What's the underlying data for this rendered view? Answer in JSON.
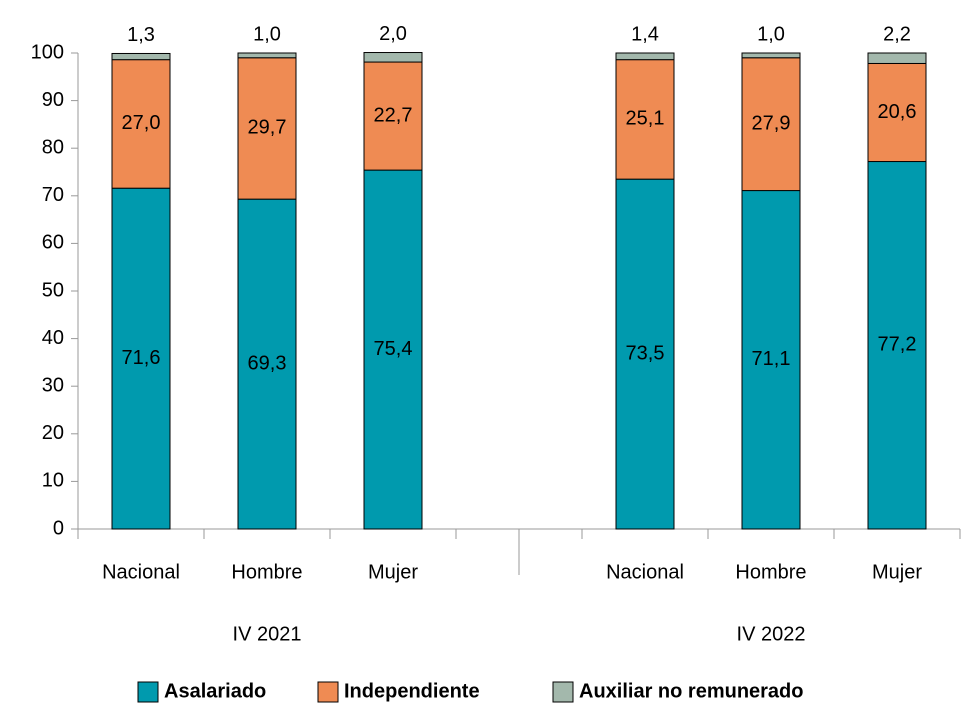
{
  "chart_data": {
    "type": "stacked_bar",
    "categories": [
      "Nacional",
      "Hombre",
      "Mujer",
      null,
      "Nacional",
      "Hombre",
      "Mujer"
    ],
    "groups": [
      "IV 2021",
      "IV 2022"
    ],
    "series": [
      {
        "name": "Asalariado",
        "color": "#009aae",
        "values": [
          71.6,
          69.3,
          75.4,
          null,
          73.5,
          71.1,
          77.2
        ],
        "value_labels": [
          "71,6",
          "69,3",
          "75,4",
          null,
          "73,5",
          "71,1",
          "77,2"
        ]
      },
      {
        "name": "Independiente",
        "color": "#ef8b53",
        "values": [
          27.0,
          29.7,
          22.7,
          null,
          25.1,
          27.9,
          20.6
        ],
        "value_labels": [
          "27,0",
          "29,7",
          "22,7",
          null,
          "25,1",
          "27,9",
          "20,6"
        ]
      },
      {
        "name": "Auxiliar no remunerado",
        "color": "#a3b8ac",
        "values": [
          1.3,
          1.0,
          2.0,
          null,
          1.4,
          1.0,
          2.2
        ],
        "value_labels": [
          "1,3",
          "1,0",
          "2,0",
          null,
          "1,4",
          "1,0",
          "2,2"
        ]
      }
    ],
    "ylim": [
      0,
      100
    ],
    "yticks": [
      0,
      10,
      20,
      30,
      40,
      50,
      60,
      70,
      80,
      90,
      100
    ],
    "legend": "bottom"
  }
}
